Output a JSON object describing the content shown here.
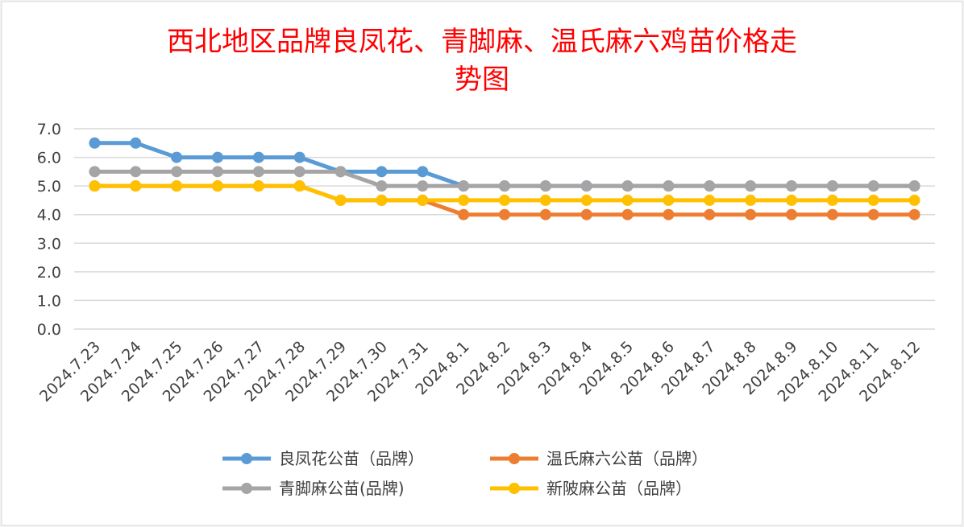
{
  "chart_data": {
    "type": "line",
    "title_line1": "西北地区品牌良凤花、青脚麻、温氏麻六鸡苗价格走",
    "title_line2": "势图",
    "categories": [
      "2024.7.23",
      "2024.7.24",
      "2024.7.25",
      "2024.7.26",
      "2024.7.27",
      "2024.7.28",
      "2024.7.29",
      "2024.7.30",
      "2024.7.31",
      "2024.8.1",
      "2024.8.2",
      "2024.8.3",
      "2024.8.4",
      "2024.8.5",
      "2024.8.6",
      "2024.8.7",
      "2024.8.8",
      "2024.8.9",
      "2024.8.10",
      "2024.8.11",
      "2024.8.12"
    ],
    "y_ticks": [
      "0.0",
      "1.0",
      "2.0",
      "3.0",
      "4.0",
      "5.0",
      "6.0",
      "7.0"
    ],
    "ylim": [
      0,
      7
    ],
    "grid": true,
    "legend_position": "bottom",
    "series": [
      {
        "name": "良凤花公苗（品牌）",
        "color": "#5b9bd5",
        "values": [
          6.5,
          6.5,
          6.0,
          6.0,
          6.0,
          6.0,
          5.5,
          5.5,
          5.5,
          5.0,
          5.0,
          5.0,
          5.0,
          5.0,
          5.0,
          5.0,
          5.0,
          5.0,
          5.0,
          5.0,
          5.0
        ]
      },
      {
        "name": "温氏麻六公苗（品牌）",
        "color": "#ed7d31",
        "values": [
          5.0,
          5.0,
          5.0,
          5.0,
          5.0,
          5.0,
          4.5,
          4.5,
          4.5,
          4.0,
          4.0,
          4.0,
          4.0,
          4.0,
          4.0,
          4.0,
          4.0,
          4.0,
          4.0,
          4.0,
          4.0
        ]
      },
      {
        "name": "新陂麻公苗（品牌）",
        "color": "#ffc000",
        "values": [
          5.0,
          5.0,
          5.0,
          5.0,
          5.0,
          5.0,
          4.5,
          4.5,
          4.5,
          4.5,
          4.5,
          4.5,
          4.5,
          4.5,
          4.5,
          4.5,
          4.5,
          4.5,
          4.5,
          4.5,
          4.5
        ]
      },
      {
        "name": "青脚麻公苗(品牌)",
        "color": "#a5a5a5",
        "values": [
          5.5,
          5.5,
          5.5,
          5.5,
          5.5,
          5.5,
          5.5,
          5.0,
          5.0,
          5.0,
          5.0,
          5.0,
          5.0,
          5.0,
          5.0,
          5.0,
          5.0,
          5.0,
          5.0,
          5.0,
          5.0
        ]
      }
    ],
    "title_color": "#ff0000"
  }
}
